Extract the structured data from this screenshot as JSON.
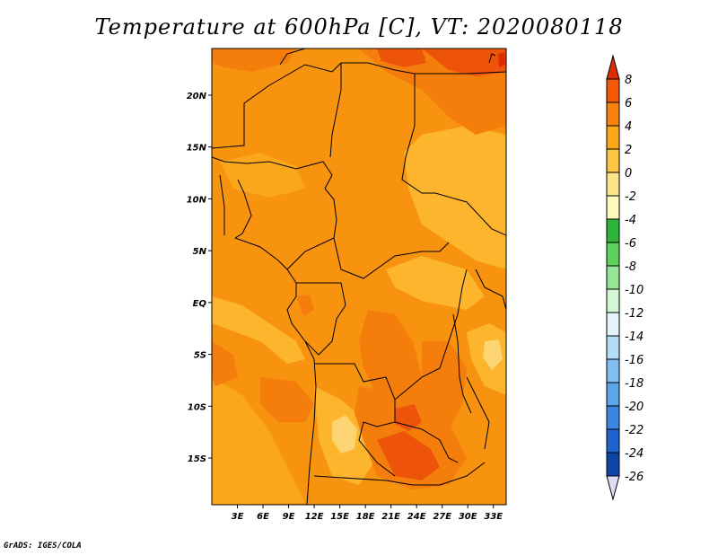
{
  "title": "Temperature at 600hPa [C], VT: 2020080118",
  "footer": "GrADS: IGES/COLA",
  "map": {
    "lon_range": [
      0,
      34.5
    ],
    "lat_range": [
      -19.5,
      24.5
    ],
    "lat_ticks": [
      {
        "value": 20,
        "label": "20N"
      },
      {
        "value": 15,
        "label": "15N"
      },
      {
        "value": 10,
        "label": "10N"
      },
      {
        "value": 5,
        "label": "5N"
      },
      {
        "value": 0,
        "label": "EQ"
      },
      {
        "value": -5,
        "label": "5S"
      },
      {
        "value": -10,
        "label": "10S"
      },
      {
        "value": -15,
        "label": "15S"
      }
    ],
    "lon_ticks": [
      {
        "value": 3,
        "label": "3E"
      },
      {
        "value": 6,
        "label": "6E"
      },
      {
        "value": 9,
        "label": "9E"
      },
      {
        "value": 12,
        "label": "12E"
      },
      {
        "value": 15,
        "label": "15E"
      },
      {
        "value": 18,
        "label": "18E"
      },
      {
        "value": 21,
        "label": "21E"
      },
      {
        "value": 24,
        "label": "24E"
      },
      {
        "value": 27,
        "label": "27E"
      },
      {
        "value": 30,
        "label": "30E"
      },
      {
        "value": 33,
        "label": "33E"
      }
    ]
  },
  "colorbar": {
    "labels": [
      "8",
      "6",
      "4",
      "2",
      "0",
      "-2",
      "-4",
      "-6",
      "-8",
      "-10",
      "-12",
      "-14",
      "-16",
      "-18",
      "-20",
      "-22",
      "-24",
      "-26"
    ],
    "colors": [
      "#dd2d05",
      "#f25a08",
      "#f7820e",
      "#fba71c",
      "#fdc544",
      "#fde688",
      "#fff9bb",
      "#2fb33a",
      "#5ed15d",
      "#96e597",
      "#d3f7d5",
      "#e4f4fd",
      "#b4ddf8",
      "#82bff0",
      "#5ca5ea",
      "#3a86e0",
      "#1f63cc",
      "#0f44a8",
      "#08258a",
      "#06156b",
      "#dcdcf5"
    ]
  }
}
